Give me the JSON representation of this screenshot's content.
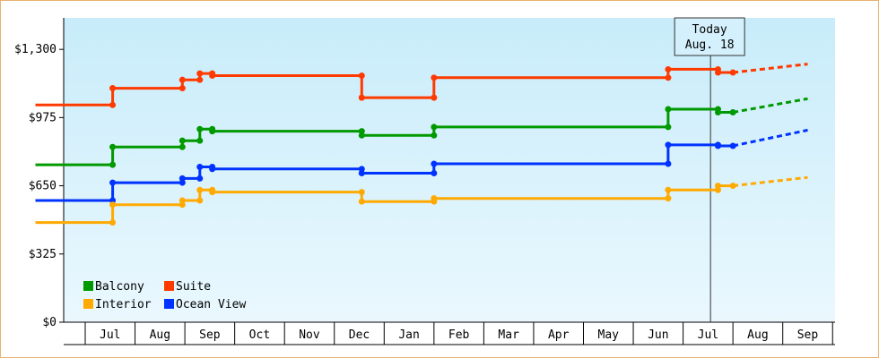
{
  "chart_data": {
    "type": "line",
    "step": true,
    "y_axis": {
      "min": 0,
      "max": 1450,
      "ticks": [
        0,
        325,
        650,
        975,
        1300
      ],
      "tick_labels": [
        "$0",
        "$325",
        "$650",
        "$975",
        "$1,300"
      ]
    },
    "x_axis": {
      "months": [
        "Jul",
        "Aug",
        "Sep",
        "Oct",
        "Nov",
        "Dec",
        "Jan",
        "Feb",
        "Mar",
        "Apr",
        "May",
        "Jun",
        "Jul",
        "Aug",
        "Sep"
      ],
      "start_month": "Jun",
      "end_month": "Sep"
    },
    "today": {
      "line1": "Today",
      "line2": "Aug. 18",
      "at": 13.55
    },
    "series": [
      {
        "name": "Suite",
        "color": "#ff3a00",
        "points": [
          [
            0.0,
            1035
          ],
          [
            1.55,
            1035
          ],
          [
            1.55,
            1115
          ],
          [
            2.95,
            1115
          ],
          [
            2.95,
            1155
          ],
          [
            3.3,
            1155
          ],
          [
            3.3,
            1185
          ],
          [
            3.55,
            1185
          ],
          [
            3.55,
            1175
          ],
          [
            6.55,
            1175
          ],
          [
            6.55,
            1070
          ],
          [
            8.0,
            1070
          ],
          [
            8.0,
            1165
          ],
          [
            12.7,
            1165
          ],
          [
            12.7,
            1205
          ],
          [
            13.7,
            1205
          ],
          [
            13.7,
            1190
          ],
          [
            14.0,
            1190
          ]
        ],
        "markers": [
          [
            1.55,
            1035
          ],
          [
            1.55,
            1115
          ],
          [
            2.95,
            1115
          ],
          [
            2.95,
            1155
          ],
          [
            3.3,
            1155
          ],
          [
            3.3,
            1185
          ],
          [
            3.55,
            1185
          ],
          [
            3.55,
            1175
          ],
          [
            6.55,
            1175
          ],
          [
            6.55,
            1070
          ],
          [
            8.0,
            1070
          ],
          [
            8.0,
            1165
          ],
          [
            12.7,
            1165
          ],
          [
            12.7,
            1205
          ],
          [
            13.7,
            1205
          ],
          [
            13.7,
            1190
          ],
          [
            14.0,
            1190
          ]
        ],
        "forecast": [
          [
            14.0,
            1190
          ],
          [
            15.5,
            1230
          ]
        ]
      },
      {
        "name": "Balcony",
        "color": "#009900",
        "points": [
          [
            0.0,
            750
          ],
          [
            1.55,
            750
          ],
          [
            1.55,
            835
          ],
          [
            2.95,
            835
          ],
          [
            2.95,
            865
          ],
          [
            3.3,
            865
          ],
          [
            3.3,
            920
          ],
          [
            3.55,
            920
          ],
          [
            3.55,
            910
          ],
          [
            6.55,
            910
          ],
          [
            6.55,
            890
          ],
          [
            8.0,
            890
          ],
          [
            8.0,
            930
          ],
          [
            12.7,
            930
          ],
          [
            12.7,
            1015
          ],
          [
            13.7,
            1015
          ],
          [
            13.7,
            1000
          ],
          [
            14.0,
            1000
          ]
        ],
        "markers": [
          [
            1.55,
            750
          ],
          [
            1.55,
            835
          ],
          [
            2.95,
            835
          ],
          [
            2.95,
            865
          ],
          [
            3.3,
            865
          ],
          [
            3.3,
            920
          ],
          [
            3.55,
            920
          ],
          [
            3.55,
            910
          ],
          [
            6.55,
            910
          ],
          [
            6.55,
            890
          ],
          [
            8.0,
            890
          ],
          [
            8.0,
            930
          ],
          [
            12.7,
            930
          ],
          [
            12.7,
            1015
          ],
          [
            13.7,
            1015
          ],
          [
            13.7,
            1000
          ],
          [
            14.0,
            1000
          ]
        ],
        "forecast": [
          [
            14.0,
            1000
          ],
          [
            15.5,
            1065
          ]
        ]
      },
      {
        "name": "Ocean View",
        "color": "#0033ff",
        "points": [
          [
            0.0,
            580
          ],
          [
            1.55,
            580
          ],
          [
            1.55,
            665
          ],
          [
            2.95,
            665
          ],
          [
            2.95,
            685
          ],
          [
            3.3,
            685
          ],
          [
            3.3,
            740
          ],
          [
            3.55,
            740
          ],
          [
            3.55,
            730
          ],
          [
            6.55,
            730
          ],
          [
            6.55,
            710
          ],
          [
            8.0,
            710
          ],
          [
            8.0,
            755
          ],
          [
            12.7,
            755
          ],
          [
            12.7,
            845
          ],
          [
            13.7,
            845
          ],
          [
            13.7,
            840
          ],
          [
            14.0,
            840
          ]
        ],
        "markers": [
          [
            1.55,
            580
          ],
          [
            1.55,
            665
          ],
          [
            2.95,
            665
          ],
          [
            2.95,
            685
          ],
          [
            3.3,
            685
          ],
          [
            3.3,
            740
          ],
          [
            3.55,
            740
          ],
          [
            3.55,
            730
          ],
          [
            6.55,
            730
          ],
          [
            6.55,
            710
          ],
          [
            8.0,
            710
          ],
          [
            8.0,
            755
          ],
          [
            12.7,
            755
          ],
          [
            12.7,
            845
          ],
          [
            13.7,
            845
          ],
          [
            13.7,
            840
          ],
          [
            14.0,
            840
          ]
        ],
        "forecast": [
          [
            14.0,
            840
          ],
          [
            15.5,
            915
          ]
        ]
      },
      {
        "name": "Interior",
        "color": "#ffaa00",
        "points": [
          [
            0.0,
            475
          ],
          [
            1.55,
            475
          ],
          [
            1.55,
            560
          ],
          [
            2.95,
            560
          ],
          [
            2.95,
            580
          ],
          [
            3.3,
            580
          ],
          [
            3.3,
            630
          ],
          [
            3.55,
            630
          ],
          [
            3.55,
            620
          ],
          [
            6.55,
            620
          ],
          [
            6.55,
            575
          ],
          [
            8.0,
            575
          ],
          [
            8.0,
            590
          ],
          [
            12.7,
            590
          ],
          [
            12.7,
            630
          ],
          [
            13.7,
            630
          ],
          [
            13.7,
            650
          ],
          [
            14.0,
            650
          ]
        ],
        "markers": [
          [
            1.55,
            475
          ],
          [
            1.55,
            560
          ],
          [
            2.95,
            560
          ],
          [
            2.95,
            580
          ],
          [
            3.3,
            580
          ],
          [
            3.3,
            630
          ],
          [
            3.55,
            630
          ],
          [
            3.55,
            620
          ],
          [
            6.55,
            620
          ],
          [
            6.55,
            575
          ],
          [
            8.0,
            575
          ],
          [
            8.0,
            590
          ],
          [
            12.7,
            590
          ],
          [
            12.7,
            630
          ],
          [
            13.7,
            630
          ],
          [
            13.7,
            650
          ],
          [
            14.0,
            650
          ]
        ],
        "forecast": [
          [
            14.0,
            650
          ],
          [
            15.5,
            690
          ]
        ]
      }
    ],
    "legend": {
      "placement": "bottom-left",
      "rows": [
        [
          {
            "name": "Balcony",
            "color": "#009900"
          },
          {
            "name": "Suite",
            "color": "#ff3a00"
          }
        ],
        [
          {
            "name": "Interior",
            "color": "#ffaa00"
          },
          {
            "name": "Ocean View",
            "color": "#0033ff"
          }
        ]
      ]
    },
    "grid": false,
    "background_gradient": [
      "#c8ecfa",
      "#eaf8fe"
    ]
  }
}
